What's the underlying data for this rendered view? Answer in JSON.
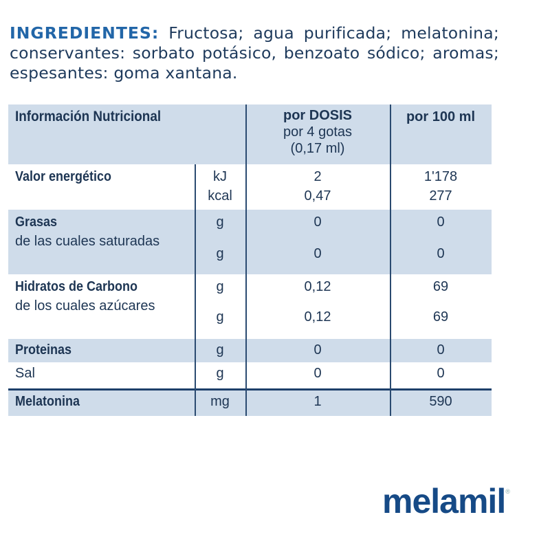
{
  "ingredients": {
    "heading": "INGREDIENTES:",
    "text": "Fructosa; agua purificada; melatonina; conservantes: sorbato potásico, benzoato sódico; aromas; espesantes: goma xantana."
  },
  "table": {
    "header": {
      "label": "Información Nutricional",
      "dose_l1": "por DOSIS",
      "dose_l2": "por 4 gotas",
      "dose_l3": "(0,17 ml)",
      "p100": "por 100 ml"
    },
    "energy": {
      "label": "Valor energético",
      "unit1": "kJ",
      "unit2": "kcal",
      "dose1": "2",
      "dose2": "0,47",
      "p1001": "1'178",
      "p1002": "277"
    },
    "fat": {
      "label": "Grasas",
      "sub": "de las cuales saturadas",
      "unit1": "g",
      "unit2": "g",
      "dose1": "0",
      "dose2": "0",
      "p1001": "0",
      "p1002": "0"
    },
    "carbs": {
      "label": "Hidratos de Carbono",
      "sub": "de los cuales azúcares",
      "unit1": "g",
      "unit2": "g",
      "dose1": "0,12",
      "dose2": "0,12",
      "p1001": "69",
      "p1002": "69"
    },
    "protein": {
      "label": "Proteinas",
      "unit": "g",
      "dose": "0",
      "p100": "0"
    },
    "salt": {
      "label": "Sal",
      "unit": "g",
      "dose": "0",
      "p100": "0"
    },
    "melatonin": {
      "label": "Melatonina",
      "unit": "mg",
      "dose": "1",
      "p100": "590"
    }
  },
  "logo": {
    "text": "melamil",
    "mark": "®"
  }
}
